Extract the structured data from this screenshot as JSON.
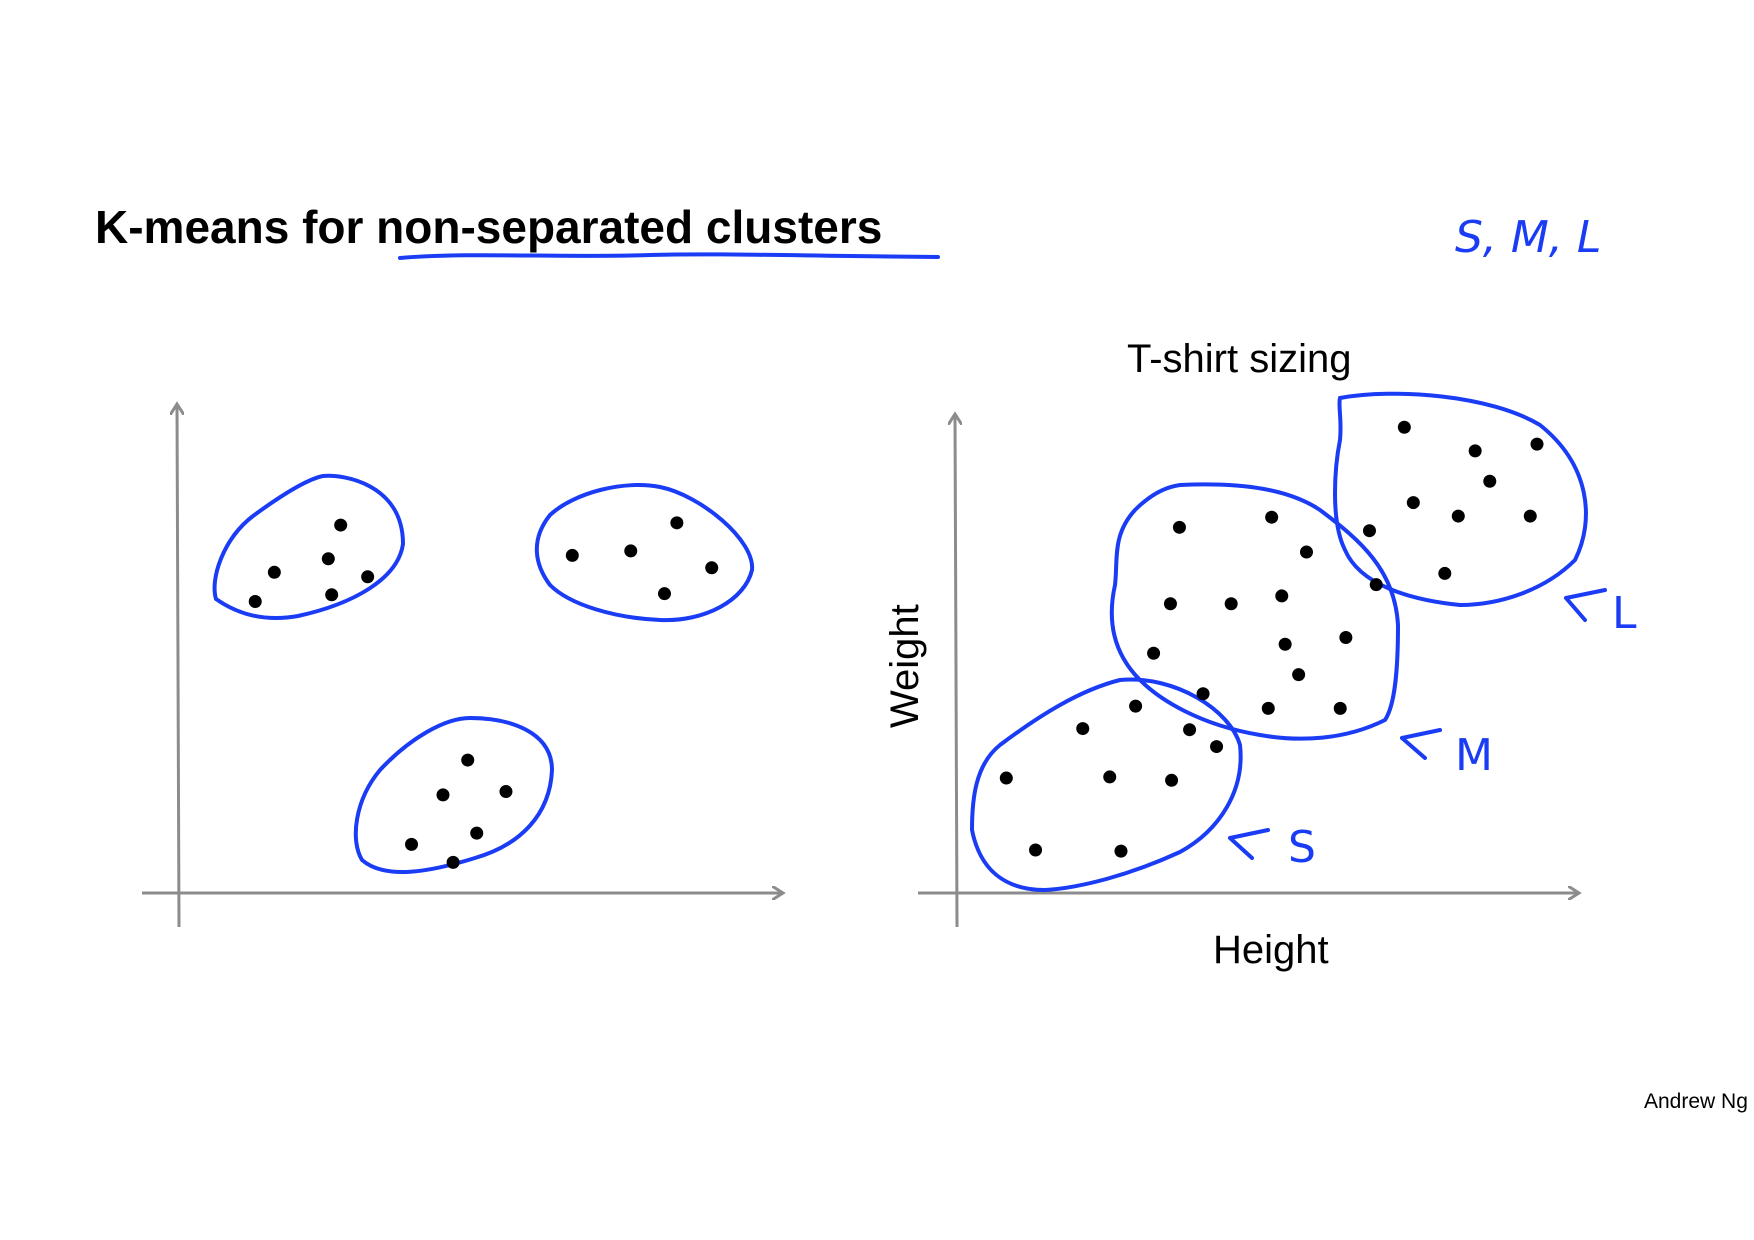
{
  "title": {
    "prefix": "K-means for ",
    "emphasis": "non-separated clusters"
  },
  "corner_note": "S, M, L",
  "author": "Andrew Ng",
  "colors": {
    "ink": "#000000",
    "axis": "#8c8c8c",
    "annotation": "#1a3cf5"
  },
  "left_panel": {
    "clusters": [
      {
        "points": [
          [
            303,
            467
          ],
          [
            244,
            509
          ],
          [
            292,
            497
          ],
          [
            327,
            513
          ],
          [
            227,
            535
          ],
          [
            295,
            529
          ]
        ]
      },
      {
        "points": [
          [
            602,
            465
          ],
          [
            509,
            494
          ],
          [
            561,
            490
          ],
          [
            633,
            505
          ],
          [
            591,
            528
          ]
        ]
      },
      {
        "points": [
          [
            416,
            676
          ],
          [
            394,
            707
          ],
          [
            450,
            704
          ],
          [
            424,
            741
          ],
          [
            366,
            751
          ],
          [
            403,
            767
          ]
        ]
      }
    ]
  },
  "right_panel": {
    "title": "T-shirt sizing",
    "xlabel": "Height",
    "ylabel": "Weight",
    "points": [
      [
        1249,
        380
      ],
      [
        1312,
        401
      ],
      [
        1367,
        395
      ],
      [
        1325,
        428
      ],
      [
        1257,
        447
      ],
      [
        1297,
        459
      ],
      [
        1361,
        459
      ],
      [
        1218,
        472
      ],
      [
        1285,
        510
      ],
      [
        1049,
        469
      ],
      [
        1131,
        460
      ],
      [
        1162,
        491
      ],
      [
        1224,
        520
      ],
      [
        1041,
        537
      ],
      [
        1095,
        537
      ],
      [
        1140,
        530
      ],
      [
        1026,
        581
      ],
      [
        1143,
        573
      ],
      [
        1197,
        567
      ],
      [
        1155,
        600
      ],
      [
        1070,
        617
      ],
      [
        1128,
        630
      ],
      [
        1192,
        630
      ],
      [
        1010,
        628
      ],
      [
        963,
        648
      ],
      [
        1058,
        649
      ],
      [
        1082,
        664
      ],
      [
        895,
        692
      ],
      [
        987,
        691
      ],
      [
        1042,
        694
      ],
      [
        921,
        756
      ],
      [
        997,
        757
      ]
    ],
    "labels": [
      {
        "text": "L"
      },
      {
        "text": "M"
      },
      {
        "text": "S"
      }
    ]
  }
}
